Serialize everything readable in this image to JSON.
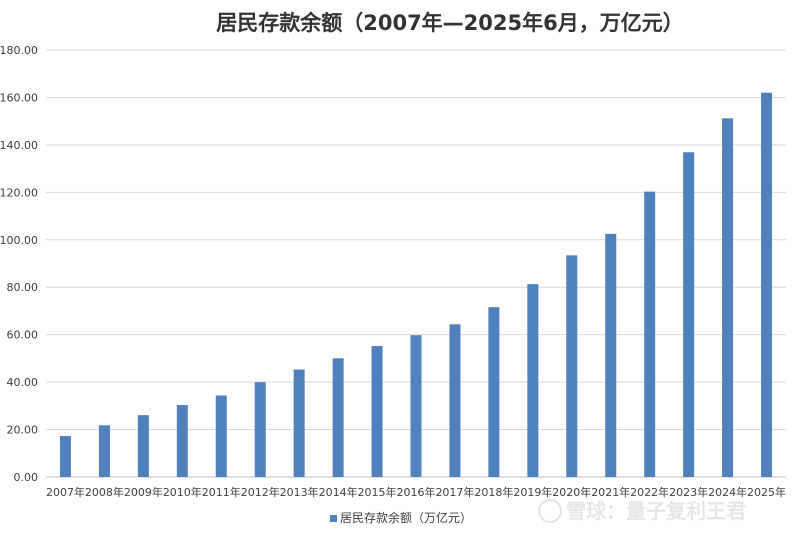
{
  "chart_data": {
    "type": "bar",
    "title": "居民存款余额（2007年—2025年6月，万亿元）",
    "categories": [
      "2007年",
      "2008年",
      "2009年",
      "2010年",
      "2011年",
      "2012年",
      "2013年",
      "2014年",
      "2015年",
      "2016年",
      "2017年",
      "2018年",
      "2019年",
      "2020年",
      "2021年",
      "2022年",
      "2023年",
      "2024年",
      "2025年"
    ],
    "series": [
      {
        "name": "居民存款余额（万亿元）",
        "color": "#4f81bd",
        "values": [
          17.25,
          21.79,
          26.08,
          30.33,
          34.36,
          39.96,
          45.3,
          50.05,
          55.2,
          59.78,
          64.38,
          71.6,
          81.3,
          93.44,
          102.5,
          120.3,
          136.9,
          151.2,
          162.0
        ]
      }
    ],
    "yticks": [
      "0.00",
      "20.00",
      "40.00",
      "60.00",
      "80.00",
      "100.00",
      "120.00",
      "140.00",
      "160.00",
      "180.00"
    ],
    "ylim": [
      0,
      180
    ],
    "grid": true,
    "legend_position": "bottom-center",
    "watermark": "雪球：量子复利王君"
  }
}
